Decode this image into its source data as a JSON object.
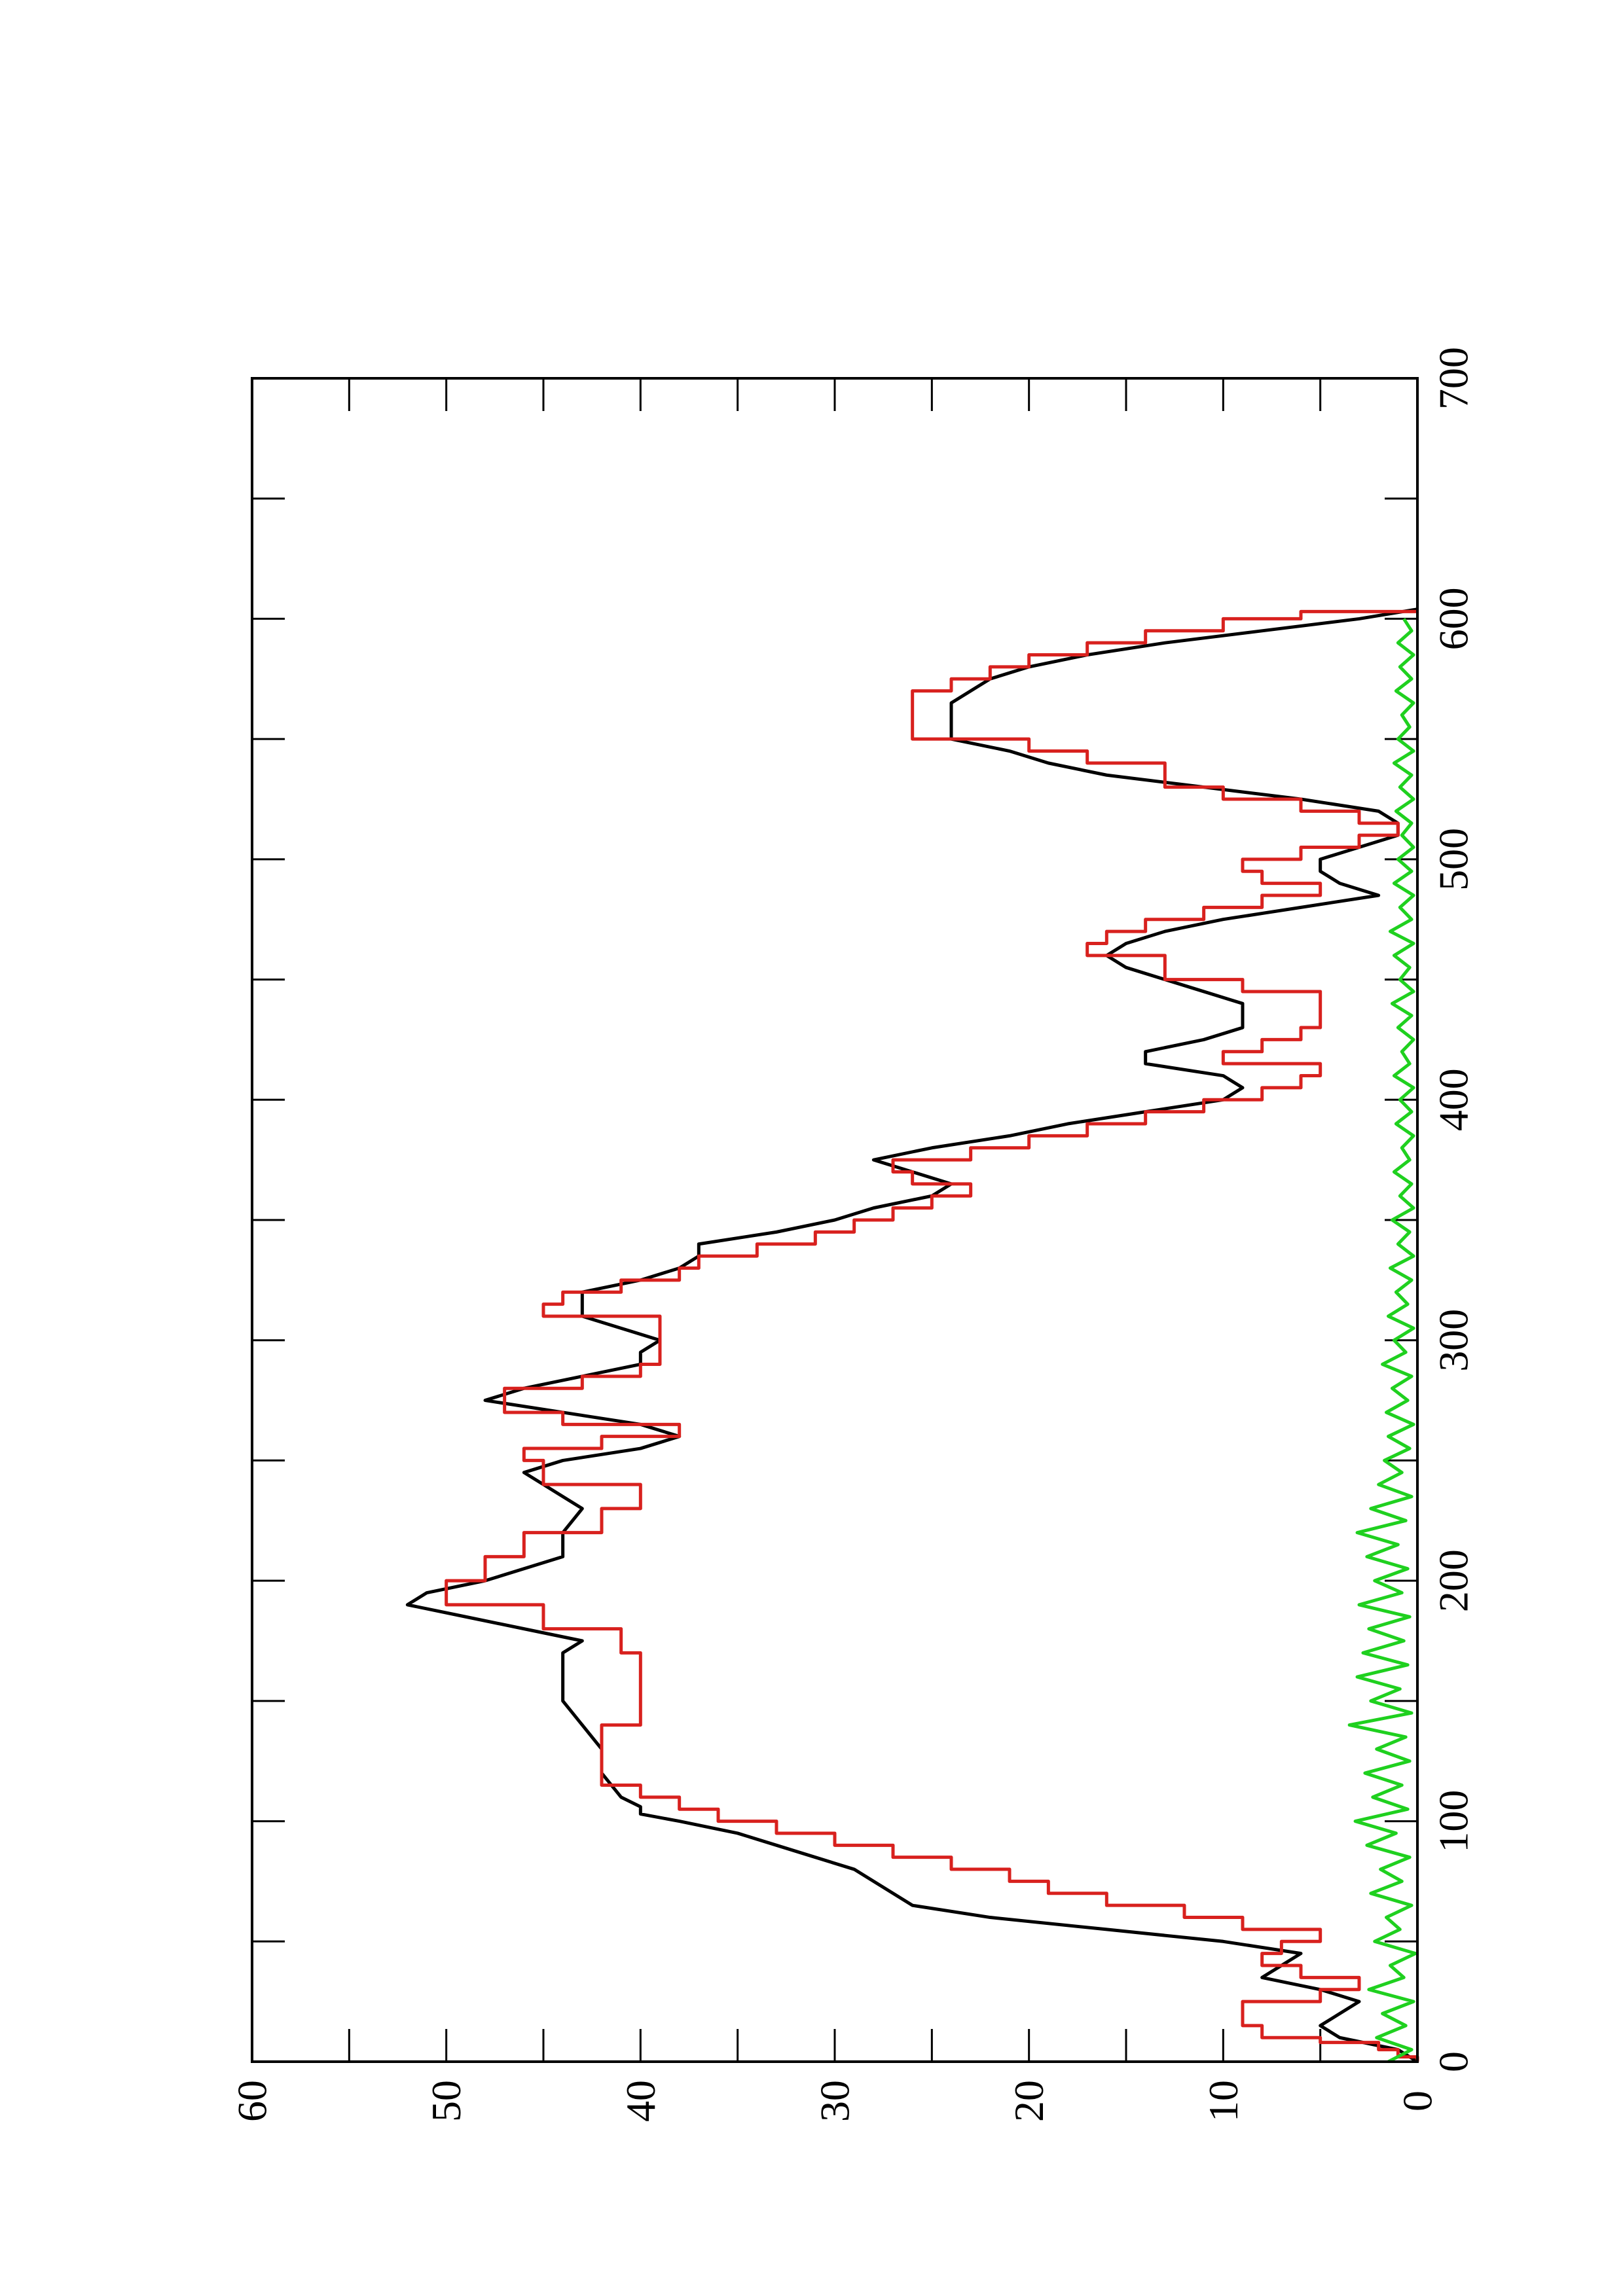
{
  "chart_data": {
    "type": "line",
    "orientation": "rotated-90",
    "title": "",
    "xlabel": "",
    "ylabel": "",
    "xlim": [
      0,
      700
    ],
    "ylim": [
      0,
      60
    ],
    "grid": false,
    "x_ticks": [
      "0",
      "100",
      "200",
      "300",
      "400",
      "500",
      "600",
      "700"
    ],
    "y_ticks": [
      "0",
      "10",
      "20",
      "30",
      "40",
      "50",
      "60"
    ],
    "series": [
      {
        "color": "#000000",
        "style": "smooth",
        "points": [
          [
            0,
            0
          ],
          [
            5,
            1
          ],
          [
            10,
            4
          ],
          [
            15,
            5
          ],
          [
            20,
            4
          ],
          [
            25,
            3
          ],
          [
            30,
            5
          ],
          [
            35,
            8
          ],
          [
            40,
            7
          ],
          [
            45,
            6
          ],
          [
            50,
            10
          ],
          [
            55,
            16
          ],
          [
            60,
            22
          ],
          [
            65,
            26
          ],
          [
            70,
            27
          ],
          [
            75,
            28
          ],
          [
            80,
            29
          ],
          [
            85,
            31
          ],
          [
            90,
            33
          ],
          [
            95,
            35
          ],
          [
            100,
            38
          ],
          [
            103,
            40
          ],
          [
            106,
            40
          ],
          [
            110,
            41
          ],
          [
            120,
            42
          ],
          [
            130,
            42
          ],
          [
            140,
            43
          ],
          [
            150,
            44
          ],
          [
            160,
            44
          ],
          [
            170,
            44
          ],
          [
            175,
            43
          ],
          [
            180,
            46
          ],
          [
            185,
            49
          ],
          [
            190,
            52
          ],
          [
            195,
            51
          ],
          [
            200,
            48
          ],
          [
            210,
            44
          ],
          [
            220,
            44
          ],
          [
            230,
            43
          ],
          [
            240,
            45
          ],
          [
            245,
            46
          ],
          [
            250,
            44
          ],
          [
            255,
            40
          ],
          [
            260,
            38
          ],
          [
            265,
            40
          ],
          [
            270,
            44
          ],
          [
            275,
            48
          ],
          [
            280,
            46
          ],
          [
            285,
            43
          ],
          [
            290,
            40
          ],
          [
            295,
            40
          ],
          [
            300,
            39
          ],
          [
            305,
            41
          ],
          [
            310,
            43
          ],
          [
            315,
            43
          ],
          [
            320,
            43
          ],
          [
            325,
            40
          ],
          [
            330,
            38
          ],
          [
            335,
            37
          ],
          [
            340,
            37
          ],
          [
            345,
            33
          ],
          [
            350,
            30
          ],
          [
            355,
            28
          ],
          [
            360,
            25
          ],
          [
            365,
            24
          ],
          [
            370,
            26
          ],
          [
            375,
            28
          ],
          [
            380,
            25
          ],
          [
            385,
            21
          ],
          [
            390,
            18
          ],
          [
            395,
            14
          ],
          [
            400,
            10
          ],
          [
            405,
            9
          ],
          [
            410,
            10
          ],
          [
            415,
            14
          ],
          [
            420,
            14
          ],
          [
            425,
            11
          ],
          [
            430,
            9
          ],
          [
            440,
            9
          ],
          [
            445,
            11
          ],
          [
            450,
            13
          ],
          [
            455,
            15
          ],
          [
            460,
            16
          ],
          [
            465,
            15
          ],
          [
            470,
            13
          ],
          [
            475,
            10
          ],
          [
            480,
            6
          ],
          [
            485,
            2
          ],
          [
            490,
            4
          ],
          [
            495,
            5
          ],
          [
            500,
            5
          ],
          [
            505,
            3
          ],
          [
            510,
            1
          ],
          [
            515,
            1
          ],
          [
            520,
            2
          ],
          [
            525,
            6
          ],
          [
            530,
            11
          ],
          [
            535,
            16
          ],
          [
            540,
            19
          ],
          [
            545,
            21
          ],
          [
            550,
            24
          ],
          [
            555,
            24
          ],
          [
            560,
            24
          ],
          [
            565,
            24
          ],
          [
            570,
            23
          ],
          [
            575,
            22
          ],
          [
            580,
            20
          ],
          [
            585,
            17
          ],
          [
            590,
            13
          ],
          [
            595,
            8
          ],
          [
            600,
            3
          ],
          [
            604,
            0
          ]
        ]
      },
      {
        "color": "#d8211e",
        "style": "step",
        "points": [
          [
            0,
            0
          ],
          [
            2,
            1
          ],
          [
            5,
            2
          ],
          [
            8,
            5
          ],
          [
            10,
            8
          ],
          [
            15,
            9
          ],
          [
            20,
            9
          ],
          [
            25,
            5
          ],
          [
            30,
            3
          ],
          [
            35,
            6
          ],
          [
            40,
            8
          ],
          [
            45,
            7
          ],
          [
            50,
            5
          ],
          [
            55,
            9
          ],
          [
            60,
            12
          ],
          [
            65,
            16
          ],
          [
            70,
            19
          ],
          [
            75,
            21
          ],
          [
            80,
            24
          ],
          [
            85,
            27
          ],
          [
            90,
            30
          ],
          [
            95,
            33
          ],
          [
            100,
            36
          ],
          [
            105,
            38
          ],
          [
            110,
            40
          ],
          [
            115,
            42
          ],
          [
            120,
            42
          ],
          [
            130,
            42
          ],
          [
            140,
            40
          ],
          [
            150,
            40
          ],
          [
            160,
            40
          ],
          [
            170,
            41
          ],
          [
            180,
            45
          ],
          [
            190,
            50
          ],
          [
            200,
            48
          ],
          [
            210,
            46
          ],
          [
            220,
            42
          ],
          [
            230,
            40
          ],
          [
            240,
            45
          ],
          [
            250,
            46
          ],
          [
            255,
            42
          ],
          [
            260,
            38
          ],
          [
            265,
            44
          ],
          [
            270,
            47
          ],
          [
            275,
            47
          ],
          [
            280,
            43
          ],
          [
            285,
            40
          ],
          [
            290,
            39
          ],
          [
            300,
            39
          ],
          [
            310,
            45
          ],
          [
            315,
            44
          ],
          [
            320,
            41
          ],
          [
            325,
            38
          ],
          [
            330,
            37
          ],
          [
            335,
            34
          ],
          [
            340,
            31
          ],
          [
            345,
            29
          ],
          [
            350,
            27
          ],
          [
            355,
            25
          ],
          [
            360,
            23
          ],
          [
            365,
            26
          ],
          [
            370,
            27
          ],
          [
            375,
            23
          ],
          [
            380,
            20
          ],
          [
            385,
            17
          ],
          [
            390,
            14
          ],
          [
            395,
            11
          ],
          [
            400,
            8
          ],
          [
            405,
            6
          ],
          [
            410,
            5
          ],
          [
            415,
            10
          ],
          [
            420,
            8
          ],
          [
            425,
            6
          ],
          [
            430,
            5
          ],
          [
            440,
            5
          ],
          [
            445,
            9
          ],
          [
            450,
            13
          ],
          [
            460,
            17
          ],
          [
            465,
            16
          ],
          [
            470,
            14
          ],
          [
            475,
            11
          ],
          [
            480,
            8
          ],
          [
            485,
            5
          ],
          [
            490,
            8
          ],
          [
            495,
            9
          ],
          [
            500,
            6
          ],
          [
            505,
            3
          ],
          [
            510,
            1
          ],
          [
            515,
            3
          ],
          [
            520,
            6
          ],
          [
            525,
            10
          ],
          [
            530,
            13
          ],
          [
            540,
            17
          ],
          [
            545,
            20
          ],
          [
            550,
            26
          ],
          [
            560,
            26
          ],
          [
            570,
            24
          ],
          [
            575,
            22
          ],
          [
            580,
            20
          ],
          [
            585,
            17
          ],
          [
            590,
            14
          ],
          [
            595,
            10
          ],
          [
            600,
            6
          ],
          [
            603,
            0
          ]
        ]
      },
      {
        "color": "#1fd01f",
        "style": "noisy",
        "points": [
          [
            0,
            1.5
          ],
          [
            5,
            0.3
          ],
          [
            10,
            2.1
          ],
          [
            15,
            0.6
          ],
          [
            20,
            1.8
          ],
          [
            25,
            0.2
          ],
          [
            30,
            2.5
          ],
          [
            35,
            0.7
          ],
          [
            40,
            1.4
          ],
          [
            45,
            0.1
          ],
          [
            50,
            2.2
          ],
          [
            55,
            0.9
          ],
          [
            60,
            1.6
          ],
          [
            65,
            0.3
          ],
          [
            70,
            2.4
          ],
          [
            75,
            0.8
          ],
          [
            80,
            1.9
          ],
          [
            85,
            0.4
          ],
          [
            90,
            2.6
          ],
          [
            95,
            1.1
          ],
          [
            100,
            3.2
          ],
          [
            105,
            0.5
          ],
          [
            110,
            2.3
          ],
          [
            115,
            0.8
          ],
          [
            120,
            2.7
          ],
          [
            125,
            0.4
          ],
          [
            130,
            2.1
          ],
          [
            135,
            0.6
          ],
          [
            140,
            3.5
          ],
          [
            145,
            0.3
          ],
          [
            150,
            2.4
          ],
          [
            155,
            0.9
          ],
          [
            160,
            3.1
          ],
          [
            165,
            0.5
          ],
          [
            170,
            2.8
          ],
          [
            175,
            0.7
          ],
          [
            180,
            2.5
          ],
          [
            185,
            0.4
          ],
          [
            190,
            3.0
          ],
          [
            195,
            0.8
          ],
          [
            200,
            2.2
          ],
          [
            205,
            0.5
          ],
          [
            210,
            2.6
          ],
          [
            215,
            1.0
          ],
          [
            220,
            3.1
          ],
          [
            225,
            0.6
          ],
          [
            230,
            2.4
          ],
          [
            235,
            0.3
          ],
          [
            240,
            2.0
          ],
          [
            245,
            0.8
          ],
          [
            250,
            1.7
          ],
          [
            255,
            0.4
          ],
          [
            260,
            1.5
          ],
          [
            265,
            0.2
          ],
          [
            270,
            1.6
          ],
          [
            275,
            0.5
          ],
          [
            280,
            1.3
          ],
          [
            285,
            0.3
          ],
          [
            290,
            1.8
          ],
          [
            295,
            0.6
          ],
          [
            300,
            1.2
          ],
          [
            305,
            0.2
          ],
          [
            310,
            1.5
          ],
          [
            315,
            0.5
          ],
          [
            320,
            1.1
          ],
          [
            325,
            0.3
          ],
          [
            330,
            1.4
          ],
          [
            335,
            0.2
          ],
          [
            340,
            1.0
          ],
          [
            345,
            0.4
          ],
          [
            350,
            1.3
          ],
          [
            355,
            0.2
          ],
          [
            360,
            0.9
          ],
          [
            365,
            0.3
          ],
          [
            370,
            1.2
          ],
          [
            375,
            0.4
          ],
          [
            380,
            0.8
          ],
          [
            385,
            0.2
          ],
          [
            390,
            1.1
          ],
          [
            395,
            0.3
          ],
          [
            400,
            0.9
          ],
          [
            405,
            0.2
          ],
          [
            410,
            1.2
          ],
          [
            415,
            0.4
          ],
          [
            420,
            0.8
          ],
          [
            425,
            0.2
          ],
          [
            430,
            1.0
          ],
          [
            435,
            0.3
          ],
          [
            440,
            1.3
          ],
          [
            445,
            0.2
          ],
          [
            450,
            0.9
          ],
          [
            455,
            0.4
          ],
          [
            460,
            1.2
          ],
          [
            465,
            0.2
          ],
          [
            470,
            1.4
          ],
          [
            475,
            0.3
          ],
          [
            480,
            0.9
          ],
          [
            485,
            0.2
          ],
          [
            490,
            1.2
          ],
          [
            495,
            0.3
          ],
          [
            500,
            1.0
          ],
          [
            505,
            0.2
          ],
          [
            510,
            0.8
          ],
          [
            515,
            0.3
          ],
          [
            520,
            1.1
          ],
          [
            525,
            0.2
          ],
          [
            530,
            0.9
          ],
          [
            535,
            0.3
          ],
          [
            540,
            1.2
          ],
          [
            545,
            0.2
          ],
          [
            550,
            1.0
          ],
          [
            555,
            0.4
          ],
          [
            560,
            0.8
          ],
          [
            565,
            0.2
          ],
          [
            570,
            1.1
          ],
          [
            575,
            0.3
          ],
          [
            580,
            0.9
          ],
          [
            585,
            0.2
          ],
          [
            590,
            1.0
          ],
          [
            595,
            0.3
          ],
          [
            600,
            0.7
          ]
        ]
      }
    ]
  }
}
